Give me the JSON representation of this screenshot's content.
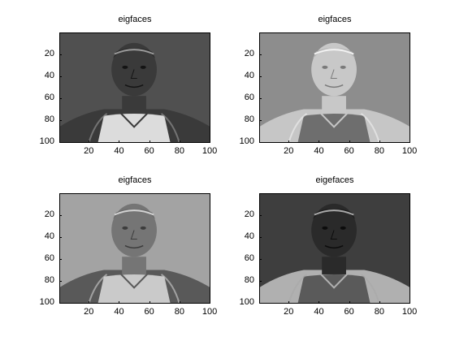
{
  "panels": [
    {
      "title": "eigfaces",
      "tone": "dark",
      "bg": "#505050",
      "skin": "#3a3a3a",
      "hair": "#2c2c2c",
      "hl": "#9a9a9a",
      "jersey": "#dcdcdc",
      "trim": "#3a3a3a",
      "eye": "#141414"
    },
    {
      "title": "eigfaces",
      "tone": "light",
      "bg": "#8d8d8d",
      "skin": "#c8c8c8",
      "hair": "#b4b4b4",
      "hl": "#f2f2f2",
      "jersey": "#6e6e6e",
      "trim": "#c6c6c6",
      "eye": "#7a7a7a"
    },
    {
      "title": "eigfaces",
      "tone": "mid",
      "bg": "#a3a3a3",
      "skin": "#757575",
      "hair": "#6a6a6a",
      "hl": "#d2d2d2",
      "jersey": "#cacaca",
      "trim": "#595959",
      "eye": "#3c3c3c"
    },
    {
      "title": "eigefaces",
      "tone": "dark2",
      "bg": "#3e3e3e",
      "skin": "#2a2a2a",
      "hair": "#1c1c1c",
      "hl": "#a8a8a8",
      "jersey": "#5a5a5a",
      "trim": "#b0b0b0",
      "eye": "#0c0c0c"
    }
  ],
  "axes": {
    "y_ticks": [
      "20",
      "40",
      "60",
      "80",
      "100"
    ],
    "x_ticks": [
      "20",
      "40",
      "60",
      "80",
      "100"
    ]
  }
}
